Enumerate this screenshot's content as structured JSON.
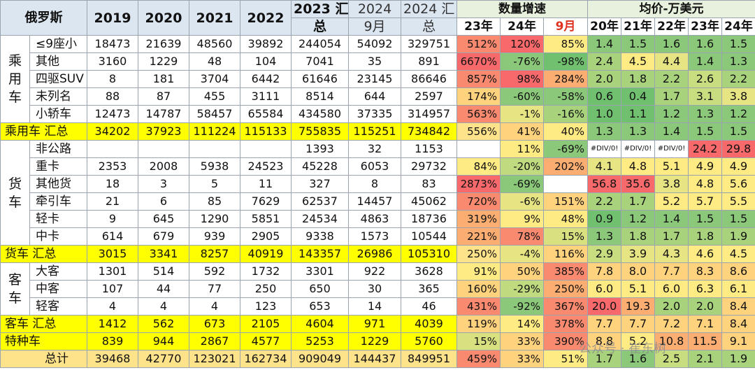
{
  "header": {
    "title": "俄罗斯",
    "years": [
      "2019",
      "2020",
      "2021",
      "2022"
    ],
    "total2023_l1": "2023 汇",
    "total2023_l2": "总",
    "m2024_l1": "2024",
    "m2024_l2": "9月",
    "t2024_l1": "2024 汇",
    "t2024_l2": "总",
    "growth_title": "数量增速",
    "growth_cols": [
      "23年",
      "24年",
      "9月"
    ],
    "price_title": "均价-万美元",
    "price_cols": [
      "20年",
      "21年",
      "22年",
      "23年",
      "24年"
    ]
  },
  "categories": {
    "passenger": "乘用车",
    "truck": "货车",
    "bus": "客车"
  },
  "rows": [
    {
      "name": "≤9座小",
      "v": [
        "18473",
        "21639",
        "48560",
        "39892",
        "244054",
        "54092",
        "329751"
      ],
      "g": [
        "512%",
        "120%",
        "85%"
      ],
      "p": [
        "1.4",
        "1.5",
        "1.6",
        "1.6",
        "1.5"
      ]
    },
    {
      "name": "其他",
      "v": [
        "3160",
        "1229",
        "48",
        "104",
        "7041",
        "35",
        "891"
      ],
      "g": [
        "6670%",
        "-76%",
        "-98%"
      ],
      "p": [
        "2.4",
        "4.5",
        "4.4",
        "1.4",
        "1.3"
      ]
    },
    {
      "name": "四驱SUV",
      "v": [
        "8",
        "181",
        "3704",
        "6442",
        "61646",
        "23145",
        "86646"
      ],
      "g": [
        "857%",
        "98%",
        "284%"
      ],
      "p": [
        "2.0",
        "1.8",
        "2.2",
        "2.6",
        "2.2"
      ]
    },
    {
      "name": "未列名",
      "v": [
        "88",
        "87",
        "455",
        "3111",
        "8514",
        "644",
        "2597"
      ],
      "g": [
        "174%",
        "-60%",
        "-58%"
      ],
      "p": [
        "0.6",
        "0.4",
        "1.7",
        "3.1",
        "3.8"
      ]
    },
    {
      "name": "小轿车",
      "v": [
        "12473",
        "14787",
        "58457",
        "65584",
        "434580",
        "37335",
        "314957"
      ],
      "g": [
        "563%",
        "-1%",
        "-16%"
      ],
      "p": [
        "1.0",
        "1.1",
        "1.2",
        "1.3",
        "1.2"
      ]
    },
    {
      "name": "乘用车 汇总",
      "v": [
        "34202",
        "37923",
        "111224",
        "115133",
        "755835",
        "115251",
        "734842"
      ],
      "g": [
        "556%",
        "41%",
        "40%"
      ],
      "p": [
        "1.3",
        "1.3",
        "1.4",
        "1.5",
        "1.5"
      ]
    },
    {
      "name": "非公路",
      "v": [
        "",
        "",
        "",
        "",
        "1393",
        "32",
        "1153"
      ],
      "g": [
        "",
        "11%",
        "-69%"
      ],
      "p": [
        "#DIV/0!",
        "#DIV/0!",
        "#DIV/0!",
        "24.2",
        "29.8"
      ]
    },
    {
      "name": "重卡",
      "v": [
        "2353",
        "2008",
        "5938",
        "24523",
        "45228",
        "6053",
        "29732"
      ],
      "g": [
        "84%",
        "-20%",
        "202%"
      ],
      "p": [
        "4.1",
        "4.8",
        "5.1",
        "4.9",
        "4.9"
      ]
    },
    {
      "name": "其他货",
      "v": [
        "18",
        "3",
        "5",
        "11",
        "327",
        "8",
        "83"
      ],
      "g": [
        "2873%",
        "-69%",
        ""
      ],
      "p": [
        "56.8",
        "35.6",
        "3.8",
        "4.8",
        "5.6"
      ]
    },
    {
      "name": "牵引车",
      "v": [
        "21",
        "6",
        "85",
        "7629",
        "62537",
        "14457",
        "45062"
      ],
      "g": [
        "720%",
        "-6%",
        "151%"
      ],
      "p": [
        "2.2",
        "1.7",
        "5.2",
        "5.7",
        "5.5"
      ]
    },
    {
      "name": "轻卡",
      "v": [
        "9",
        "645",
        "1290",
        "5851",
        "24534",
        "4863",
        "18736"
      ],
      "g": [
        "319%",
        "9%",
        "48%"
      ],
      "p": [
        "0.9",
        "1.2",
        "1.4",
        "1.5",
        "1.5"
      ]
    },
    {
      "name": "中卡",
      "v": [
        "614",
        "679",
        "939",
        "2905",
        "9338",
        "1573",
        "10544"
      ],
      "g": [
        "221%",
        "78%",
        "15%"
      ],
      "p": [
        "1.3",
        "1.8",
        "1.7",
        "1.8",
        "1.9"
      ]
    },
    {
      "name": "货车 汇总",
      "v": [
        "3015",
        "3341",
        "8257",
        "40919",
        "143357",
        "26986",
        "105310"
      ],
      "g": [
        "250%",
        "-4%",
        "116%"
      ],
      "p": [
        "2.9",
        "3.9",
        "4.3",
        "4.6",
        "4.5"
      ]
    },
    {
      "name": "大客",
      "v": [
        "1301",
        "514",
        "592",
        "1732",
        "3301",
        "922",
        "3628"
      ],
      "g": [
        "91%",
        "50%",
        "385%"
      ],
      "p": [
        "7.8",
        "8.0",
        "7.7",
        "8.3",
        "8.6"
      ]
    },
    {
      "name": "中客",
      "v": [
        "107",
        "44",
        "77",
        "250",
        "650",
        "30",
        "365"
      ],
      "g": [
        "160%",
        "-29%",
        "250%"
      ],
      "p": [
        "6.0",
        "5.1",
        "6.0",
        "6.3",
        "6.1"
      ]
    },
    {
      "name": "轻客",
      "v": [
        "4",
        "4",
        "4",
        "123",
        "653",
        "14",
        "46"
      ],
      "g": [
        "431%",
        "-92%",
        "367%"
      ],
      "p": [
        "20.0",
        "19.3",
        "2.0",
        "2.0",
        "8.4"
      ]
    },
    {
      "name": "客车 汇总",
      "v": [
        "1412",
        "562",
        "673",
        "2105",
        "4604",
        "971",
        "4039"
      ],
      "g": [
        "119%",
        "14%",
        "378%"
      ],
      "p": [
        "7.7",
        "7.7",
        "7.2",
        "7.1",
        "8.4"
      ]
    },
    {
      "name": "特种车",
      "v": [
        "839",
        "944",
        "2867",
        "4577",
        "5253",
        "1229",
        "5760"
      ],
      "g": [
        "15%",
        "33%",
        "390%"
      ],
      "p": [
        "8.8",
        "5.2",
        "10.8",
        "11.5",
        "9.1"
      ]
    },
    {
      "name": "总计",
      "v": [
        "39468",
        "42770",
        "123021",
        "162734",
        "909049",
        "144437",
        "849951"
      ],
      "g": [
        "459%",
        "33%",
        "51%"
      ],
      "p": [
        "1.7",
        "1.6",
        "2.5",
        "2.1",
        "1.9"
      ]
    }
  ],
  "watermark": "公众号 · 崔东树"
}
